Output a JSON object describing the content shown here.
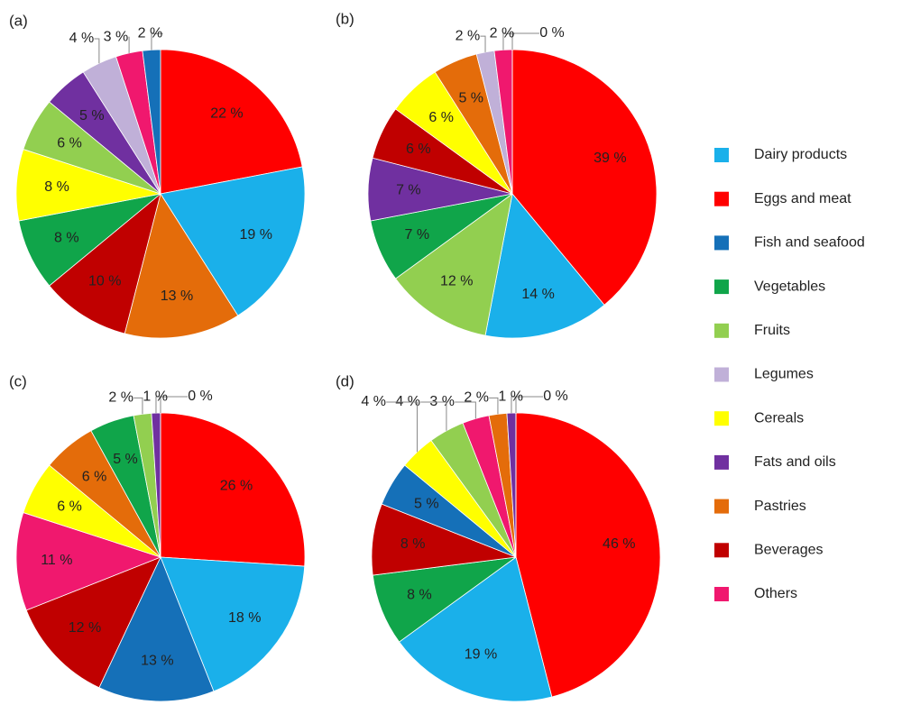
{
  "legend": {
    "items": [
      {
        "name": "Dairy products",
        "color": "#1ab0ea"
      },
      {
        "name": "Eggs and meat",
        "color": "#ff0000"
      },
      {
        "name": "Fish and seafood",
        "color": "#1570b8"
      },
      {
        "name": "Vegetables",
        "color": "#10a54a"
      },
      {
        "name": "Fruits",
        "color": "#92cf50"
      },
      {
        "name": "Legumes",
        "color": "#c0b0d8"
      },
      {
        "name": "Cereals",
        "color": "#ffff00"
      },
      {
        "name": "Fats and oils",
        "color": "#7030a0"
      },
      {
        "name": "Pastries",
        "color": "#e46c0a"
      },
      {
        "name": "Beverages",
        "color": "#c00000"
      },
      {
        "name": "Others",
        "color": "#f0186e"
      }
    ]
  },
  "chart_data": [
    {
      "type": "pie",
      "title": "(a)",
      "categories": [
        "Eggs and meat",
        "Dairy products",
        "Pastries",
        "Beverages",
        "Vegetables",
        "Cereals",
        "Fruits",
        "Fats and oils",
        "Legumes",
        "Others",
        "Fish and seafood"
      ],
      "values": [
        22,
        19,
        13,
        10,
        8,
        8,
        6,
        5,
        4,
        3,
        2
      ],
      "value_labels": [
        "22 %",
        "19 %",
        "13 %",
        "10 %",
        "8 %",
        "8 %",
        "6 %",
        "5 %",
        "4 %",
        "3 %",
        "2 %"
      ]
    },
    {
      "type": "pie",
      "title": "(b)",
      "categories": [
        "Eggs and meat",
        "Dairy products",
        "Fruits",
        "Vegetables",
        "Fats and oils",
        "Beverages",
        "Cereals",
        "Pastries",
        "Legumes",
        "Others",
        "Fish and seafood"
      ],
      "values": [
        39,
        14,
        12,
        7,
        7,
        6,
        6,
        5,
        2,
        2,
        0
      ],
      "value_labels": [
        "39 %",
        "14 %",
        "12 %",
        "7 %",
        "7 %",
        "6 %",
        "6 %",
        "5 %",
        "2 %",
        "2 %",
        "0 %"
      ]
    },
    {
      "type": "pie",
      "title": "(c)",
      "categories": [
        "Eggs and meat",
        "Dairy products",
        "Fish and seafood",
        "Beverages",
        "Others",
        "Cereals",
        "Pastries",
        "Vegetables",
        "Fruits",
        "Fats and oils",
        "Legumes"
      ],
      "values": [
        26,
        18,
        13,
        12,
        11,
        6,
        6,
        5,
        2,
        1,
        0
      ],
      "value_labels": [
        "26 %",
        "18 %",
        "13 %",
        "12 %",
        "11 %",
        "6 %",
        "6 %",
        "5 %",
        "2 %",
        "1 %",
        "0 %"
      ]
    },
    {
      "type": "pie",
      "title": "(d)",
      "categories": [
        "Eggs and meat",
        "Dairy products",
        "Vegetables",
        "Beverages",
        "Fish and seafood",
        "Cereals",
        "Fruits",
        "Others",
        "Pastries",
        "Fats and oils",
        "Legumes"
      ],
      "values": [
        46,
        19,
        8,
        8,
        5,
        4,
        4,
        3,
        2,
        1,
        0
      ],
      "value_labels": [
        "46 %",
        "19 %",
        "8 %",
        "8 %",
        "5 %",
        "4 %",
        "4 %",
        "3 %",
        "2 %",
        "1 %",
        "0 %"
      ]
    }
  ]
}
